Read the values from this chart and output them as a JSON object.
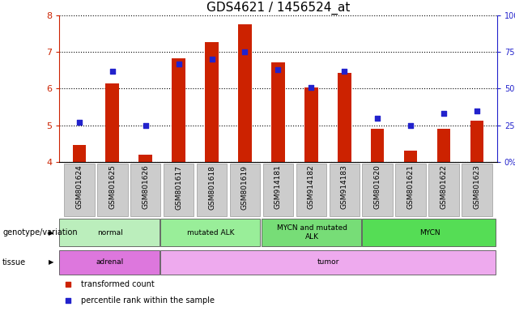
{
  "title": "GDS4621 / 1456524_at",
  "samples": [
    "GSM801624",
    "GSM801625",
    "GSM801626",
    "GSM801617",
    "GSM801618",
    "GSM801619",
    "GSM914181",
    "GSM914182",
    "GSM914183",
    "GSM801620",
    "GSM801621",
    "GSM801622",
    "GSM801623"
  ],
  "transformed_count": [
    4.45,
    6.15,
    4.2,
    6.82,
    7.27,
    7.77,
    6.72,
    6.03,
    6.42,
    4.9,
    4.3,
    4.9,
    5.13
  ],
  "percentile_rank": [
    27,
    62,
    25,
    67,
    70,
    75,
    63,
    51,
    62,
    30,
    25,
    33,
    35
  ],
  "ylim_left": [
    4,
    8
  ],
  "ylim_right": [
    0,
    100
  ],
  "yticks_left": [
    4,
    5,
    6,
    7,
    8
  ],
  "yticks_right": [
    0,
    25,
    50,
    75,
    100
  ],
  "bar_color": "#cc2200",
  "dot_color": "#2222cc",
  "bar_bottom": 4.0,
  "genotype_groups": [
    {
      "label": "normal",
      "start": 0,
      "end": 3,
      "color": "#bbeebc"
    },
    {
      "label": "mutated ALK",
      "start": 3,
      "end": 6,
      "color": "#99ee99"
    },
    {
      "label": "MYCN and mutated\nALK",
      "start": 6,
      "end": 9,
      "color": "#77dd77"
    },
    {
      "label": "MYCN",
      "start": 9,
      "end": 13,
      "color": "#55dd55"
    }
  ],
  "tissue_groups": [
    {
      "label": "adrenal",
      "start": 0,
      "end": 3,
      "color": "#dd77dd"
    },
    {
      "label": "tumor",
      "start": 3,
      "end": 13,
      "color": "#eeaaee"
    }
  ],
  "legend_items": [
    {
      "label": "transformed count",
      "color": "#cc2200"
    },
    {
      "label": "percentile rank within the sample",
      "color": "#2222cc"
    }
  ],
  "left_axis_color": "#cc2200",
  "right_axis_color": "#2222cc",
  "title_fontsize": 11,
  "annotation_row1_label": "genotype/variation",
  "annotation_row2_label": "tissue"
}
